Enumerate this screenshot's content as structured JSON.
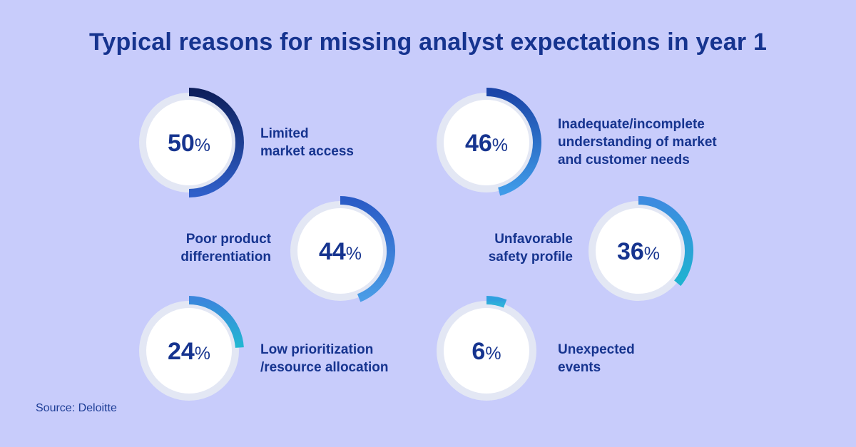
{
  "title": "Typical reasons for missing analyst expectations in year 1",
  "source": "Source: Deloitte",
  "colors": {
    "background": "#c8ccfb",
    "ring_track": "#e3e7f4",
    "inner_circle": "#ffffff",
    "text": "#16348f"
  },
  "chart_data": {
    "type": "radial-progress",
    "title": "Typical reasons for missing analyst expectations in year 1",
    "items": [
      {
        "value": 50,
        "value_label": "50%",
        "label_lines": [
          "Limited",
          "market access"
        ],
        "gradient": [
          "#0d1f5c",
          "#2f5fc9"
        ]
      },
      {
        "value": 46,
        "value_label": "46%",
        "label_lines": [
          "Inadequate/incomplete",
          "understanding of market",
          "and customer needs"
        ],
        "gradient": [
          "#1b45a8",
          "#3f9be8"
        ]
      },
      {
        "value": 44,
        "value_label": "44%",
        "label_lines": [
          "Poor product",
          "differentiation"
        ],
        "gradient": [
          "#2a5bc6",
          "#4a9ce6"
        ]
      },
      {
        "value": 36,
        "value_label": "36%",
        "label_lines": [
          "Unfavorable",
          "safety profile"
        ],
        "gradient": [
          "#3d8be0",
          "#1fb3d0"
        ]
      },
      {
        "value": 24,
        "value_label": "24%",
        "label_lines": [
          "Low prioritization",
          "/resource allocation"
        ],
        "gradient": [
          "#3a86dc",
          "#22b8d2"
        ]
      },
      {
        "value": 6,
        "value_label": "6%",
        "label_lines": [
          "Unexpected",
          "events"
        ],
        "gradient": [
          "#2fa0df",
          "#2fb0da"
        ]
      }
    ]
  }
}
